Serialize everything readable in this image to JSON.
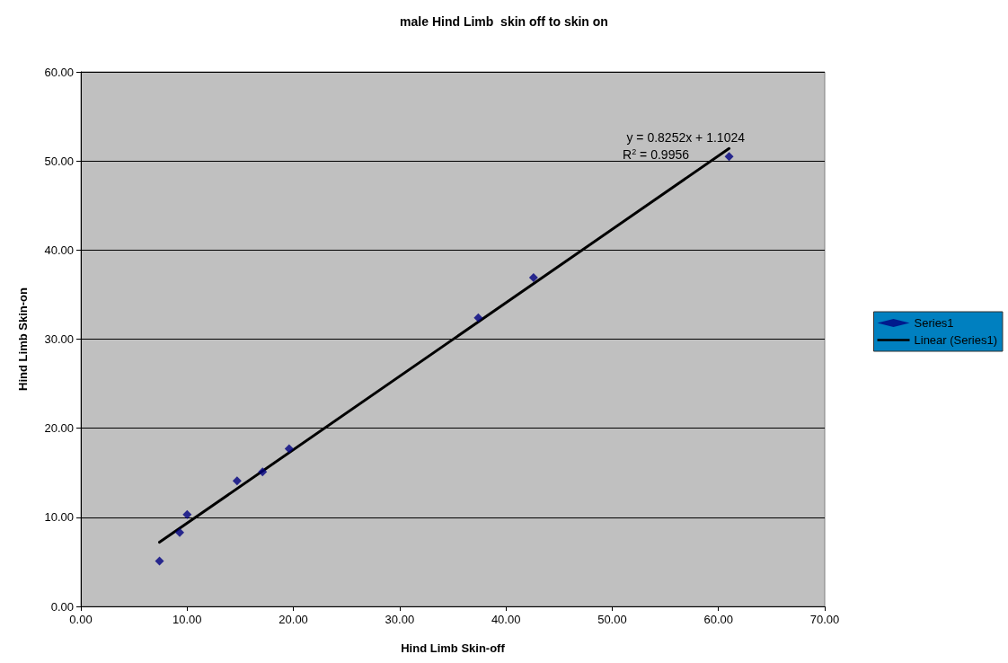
{
  "chart_data": {
    "type": "scatter",
    "title": "male Hind Limb  skin off to skin on",
    "xlabel": "Hind Limb Skin-off",
    "ylabel": "Hind Limb Skin-on",
    "series": [
      {
        "name": "Series1",
        "marker": "diamond",
        "color": "#000080",
        "x": [
          7.4,
          9.3,
          10.0,
          14.7,
          17.1,
          19.6,
          37.4,
          42.6,
          61.0
        ],
        "values": [
          5.1,
          8.3,
          10.3,
          14.1,
          15.1,
          17.7,
          32.4,
          36.9,
          50.5
        ]
      },
      {
        "name": "Linear (Series1)",
        "type": "line",
        "marker": "none",
        "color": "#000000",
        "x": [
          7.4,
          61.0
        ],
        "values": [
          7.2,
          51.4
        ]
      }
    ],
    "annotations": [
      "y = 0.8252x + 1.1024",
      "R$^{2}$ = 0.9956"
    ],
    "xlim": [
      0,
      70
    ],
    "ylim": [
      0,
      60
    ],
    "xticks": [
      {
        "value": 0,
        "label": "0.00"
      },
      {
        "value": 10,
        "label": "10.00"
      },
      {
        "value": 20,
        "label": "20.00"
      },
      {
        "value": 30,
        "label": "30.00"
      },
      {
        "value": 40,
        "label": "40.00"
      },
      {
        "value": 50,
        "label": "50.00"
      },
      {
        "value": 60,
        "label": "60.00"
      },
      {
        "value": 70,
        "label": "70.00"
      }
    ],
    "yticks": [
      {
        "value": 0,
        "label": "0.00"
      },
      {
        "value": 10,
        "label": "10.00"
      },
      {
        "value": 20,
        "label": "20.00"
      },
      {
        "value": 30,
        "label": "30.00"
      },
      {
        "value": 40,
        "label": "40.00"
      },
      {
        "value": 50,
        "label": "50.00"
      },
      {
        "value": 60,
        "label": "60.00"
      }
    ],
    "grid": "y",
    "legend": "right",
    "line_style": "solid"
  }
}
